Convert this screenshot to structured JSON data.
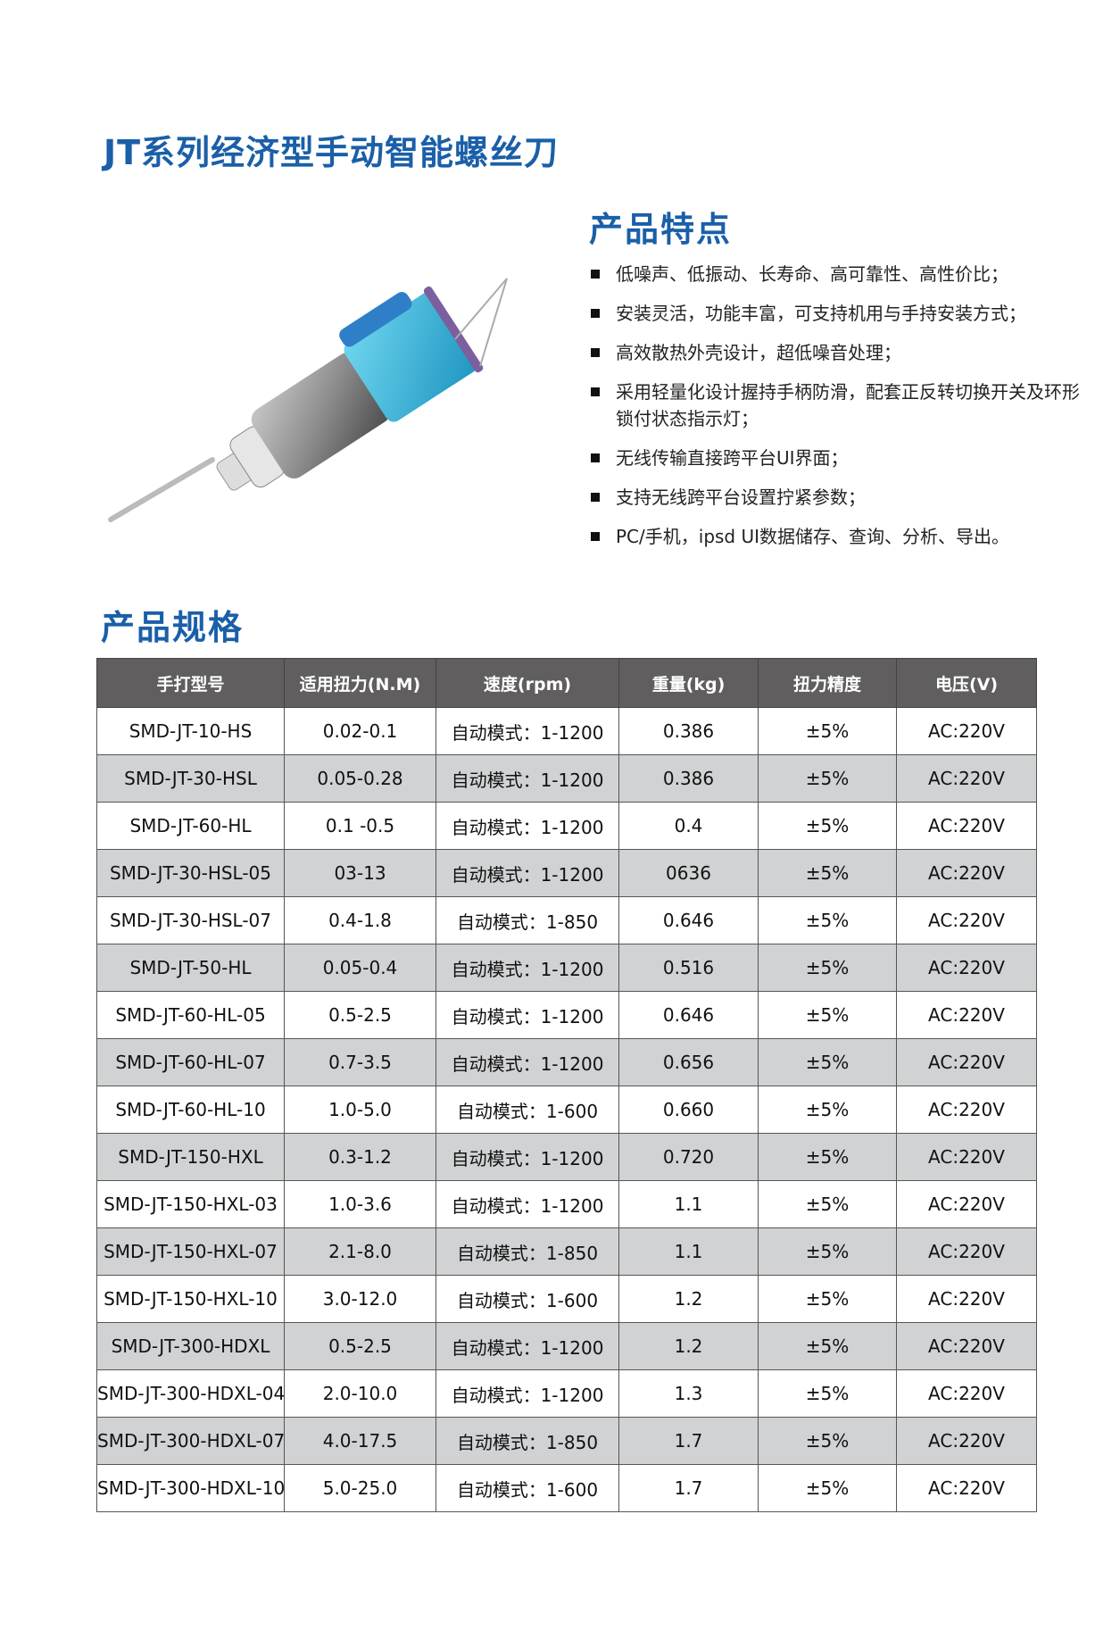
{
  "title": "JT系列经济型手动智能螺丝刀",
  "features": {
    "heading": "产品特点",
    "items": [
      "低噪声、低振动、长寿命、高可靠性、高性价比；",
      "安装灵活，功能丰富，可支持机用与手持安装方式；",
      "高效散热外壳设计，超低噪音处理；",
      "采用轻量化设计握持手柄防滑，配套正反转切换开关及环形锁付状态指示灯；",
      "无线传输直接跨平台UI界面；",
      "支持无线跨平台设置拧紧参数；",
      "PC/手机，ipsd UI数据储存、查询、分析、导出。"
    ]
  },
  "specs": {
    "heading": "产品规格",
    "columns": [
      "手打型号",
      "适用扭力(N.M)",
      "速度(rpm)",
      "重量(kg)",
      "扭力精度",
      "电压(V)"
    ],
    "rows": [
      [
        "SMD-JT-10-HS",
        "0.02-0.1",
        "自动模式：1-1200",
        "0.386",
        "±5%",
        "AC:220V"
      ],
      [
        "SMD-JT-30-HSL",
        "0.05-0.28",
        "自动模式：1-1200",
        "0.386",
        "±5%",
        "AC:220V"
      ],
      [
        "SMD-JT-60-HL",
        "0.1 -0.5",
        "自动模式：1-1200",
        "0.4",
        "±5%",
        "AC:220V"
      ],
      [
        "SMD-JT-30-HSL-05",
        "03-13",
        "自动模式：1-1200",
        "0636",
        "±5%",
        "AC:220V"
      ],
      [
        "SMD-JT-30-HSL-07",
        "0.4-1.8",
        "自动模式：1-850",
        "0.646",
        "±5%",
        "AC:220V"
      ],
      [
        "SMD-JT-50-HL",
        "0.05-0.4",
        "自动模式：1-1200",
        "0.516",
        "±5%",
        "AC:220V"
      ],
      [
        "SMD-JT-60-HL-05",
        "0.5-2.5",
        "自动模式：1-1200",
        "0.646",
        "±5%",
        "AC:220V"
      ],
      [
        "SMD-JT-60-HL-07",
        "0.7-3.5",
        "自动模式：1-1200",
        "0.656",
        "±5%",
        "AC:220V"
      ],
      [
        "SMD-JT-60-HL-10",
        "1.0-5.0",
        "自动模式：1-600",
        "0.660",
        "±5%",
        "AC:220V"
      ],
      [
        "SMD-JT-150-HXL",
        "0.3-1.2",
        "自动模式：1-1200",
        "0.720",
        "±5%",
        "AC:220V"
      ],
      [
        "SMD-JT-150-HXL-03",
        "1.0-3.6",
        "自动模式：1-1200",
        "1.1",
        "±5%",
        "AC:220V"
      ],
      [
        "SMD-JT-150-HXL-07",
        "2.1-8.0",
        "自动模式：1-850",
        "1.1",
        "±5%",
        "AC:220V"
      ],
      [
        "SMD-JT-150-HXL-10",
        "3.0-12.0",
        "自动模式：1-600",
        "1.2",
        "±5%",
        "AC:220V"
      ],
      [
        "SMD-JT-300-HDXL",
        "0.5-2.5",
        "自动模式：1-1200",
        "1.2",
        "±5%",
        "AC:220V"
      ],
      [
        "SMD-JT-300-HDXL-04",
        "2.0-10.0",
        "自动模式：1-1200",
        "1.3",
        "±5%",
        "AC:220V"
      ],
      [
        "SMD-JT-300-HDXL-07",
        "4.0-17.5",
        "自动模式：1-850",
        "1.7",
        "±5%",
        "AC:220V"
      ],
      [
        "SMD-JT-300-HDXL-10",
        "5.0-25.0",
        "自动模式：1-600",
        "1.7",
        "±5%",
        "AC:220V"
      ]
    ]
  },
  "colors": {
    "accent": "#1a5fa8",
    "header_bg": "#605e5f",
    "alt_row": "#d1d2d4",
    "tool_body": "#3fb8dc"
  }
}
